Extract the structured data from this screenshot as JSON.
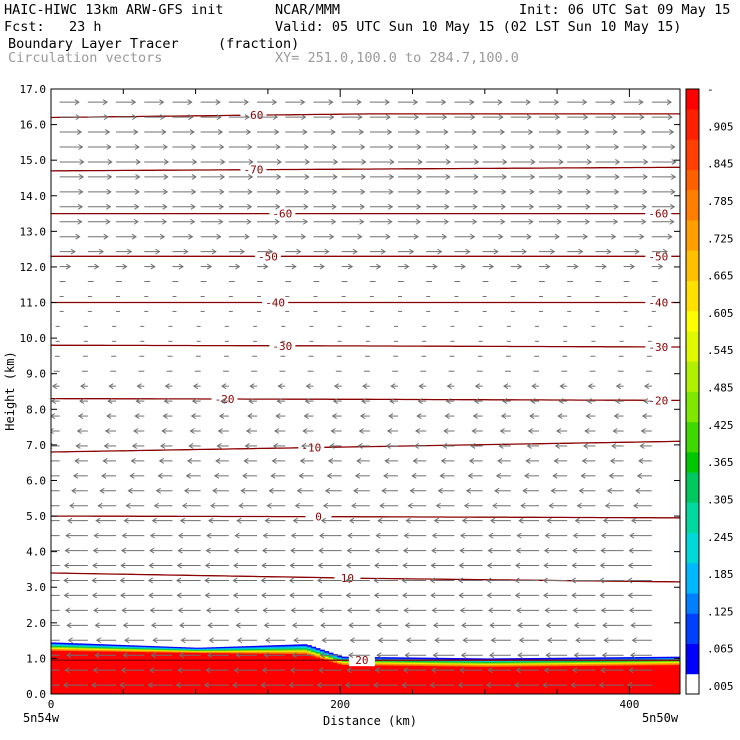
{
  "header": {
    "title_left": "HAIC-HIWC 13km ARW-GFS init",
    "org": "NCAR/MMM",
    "init": "Init: 06 UTC Sat 09 May 15",
    "fcst": "Fcst:   23 h",
    "valid": "Valid: 05 UTC Sun 10 May 15 (02 LST Sun 10 May 15)",
    "field": "Boundary Layer Tracer",
    "field_units": "(fraction)",
    "vectors": "Circulation vectors",
    "xy": "XY= 251.0,100.0 to 284.7,100.0"
  },
  "colors": {
    "contour": "#8b0000",
    "vector": "#707070",
    "tracer_scale": [
      "#ffffff",
      "#0000ff",
      "#00a0ff",
      "#00d8d0",
      "#00c050",
      "#20d020",
      "#80e000",
      "#c8f000",
      "#f0f000",
      "#ffd000",
      "#ffa000",
      "#ff7000",
      "#ff4000",
      "#ff0000"
    ]
  },
  "colorbar": {
    "labels": [
      "-",
      ".905",
      ".845",
      ".785",
      ".725",
      ".665",
      ".605",
      ".545",
      ".485",
      ".425",
      ".365",
      ".305",
      ".245",
      ".185",
      ".125",
      ".065",
      ".005"
    ]
  },
  "chart_data": {
    "type": "contour",
    "title": "Boundary Layer Tracer (fraction)",
    "xlabel": "Distance (km)",
    "ylabel": "Height (km)",
    "xlim": [
      0,
      435
    ],
    "ylim": [
      0,
      17
    ],
    "x_ticks": [
      "0",
      "200",
      "400"
    ],
    "x_end_labels": [
      "5n54w",
      "5n50w"
    ],
    "y_ticks": [
      "0.0",
      "1.0",
      "2.0",
      "3.0",
      "4.0",
      "5.0",
      "6.0",
      "7.0",
      "8.0",
      "9.0",
      "10.0",
      "11.0",
      "12.0",
      "13.0",
      "14.0",
      "15.0",
      "16.0",
      "17.0"
    ],
    "tracer_fill": {
      "x": [
        0,
        100,
        175,
        200,
        300,
        435
      ],
      "top_km": [
        1.45,
        1.3,
        1.4,
        1.05,
        1.0,
        1.05
      ],
      "core_top_km": [
        1.2,
        1.15,
        1.1,
        0.8,
        0.75,
        0.8
      ]
    },
    "temperature_contours": [
      {
        "label": "20",
        "y": [
          0.95,
          0.95,
          0.95
        ],
        "label_x": 215
      },
      {
        "label": "10",
        "y": [
          3.4,
          3.25,
          3.15
        ],
        "label_x": 205
      },
      {
        "label": "0",
        "y": [
          5.0,
          4.98,
          4.95
        ],
        "label_x": 185
      },
      {
        "label": "-10",
        "y": [
          6.8,
          6.95,
          7.1
        ],
        "label_x": 180
      },
      {
        "label": "-20",
        "y": [
          8.3,
          8.28,
          8.25
        ],
        "label_x": 120,
        "label_x2": 420
      },
      {
        "label": "-30",
        "y": [
          9.8,
          9.78,
          9.75
        ],
        "label_x": 160,
        "label_x2": 420
      },
      {
        "label": "-40",
        "y": [
          11.0,
          11.0,
          11.0
        ],
        "label_x": 155,
        "label_x2": 420
      },
      {
        "label": "-50",
        "y": [
          12.3,
          12.3,
          12.3
        ],
        "label_x": 150,
        "label_x2": 420
      },
      {
        "label": "-60",
        "y": [
          13.5,
          13.5,
          13.5
        ],
        "label_x": 160,
        "label_x2": 420
      },
      {
        "label": "-70",
        "y": [
          14.7,
          14.75,
          14.8
        ],
        "label_x": 140
      },
      {
        "label": "-60",
        "y": [
          16.2,
          16.3,
          16.3
        ],
        "label_x": 140
      }
    ],
    "wind_direction_by_level": {
      "heights_km": [
        0.3,
        1.5,
        3.0,
        4.5,
        6.0,
        8.0,
        10.0,
        11.5,
        13.0,
        15.0,
        16.5
      ],
      "u_relative": [
        -1.0,
        -0.8,
        -1.0,
        -0.9,
        -0.6,
        -0.35,
        -0.15,
        0.2,
        0.9,
        1.0,
        0.8
      ]
    }
  }
}
